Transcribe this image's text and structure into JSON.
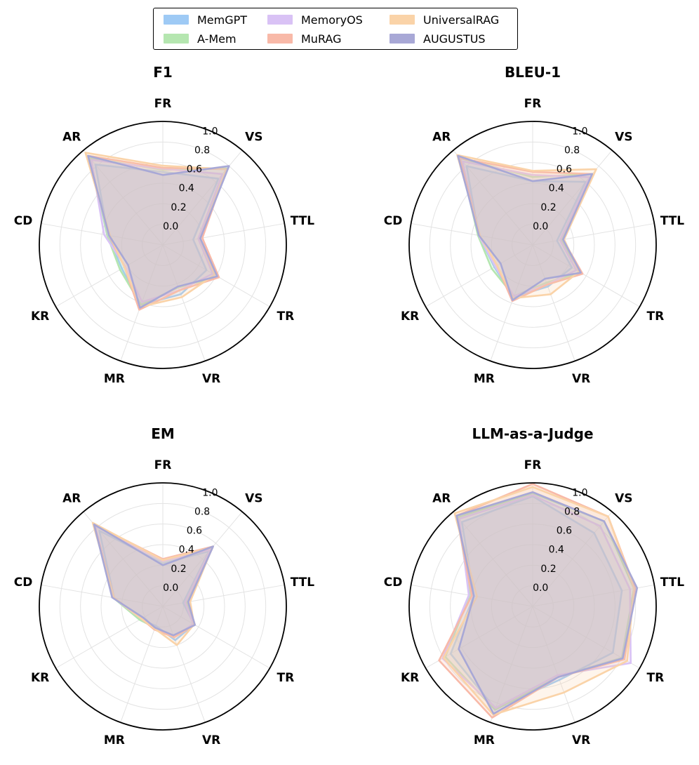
{
  "legend": [
    {
      "name": "MemGPT",
      "color": "#9ECAF5"
    },
    {
      "name": "A-Mem",
      "color": "#B5E6B0"
    },
    {
      "name": "MemoryOS",
      "color": "#D9C2F5"
    },
    {
      "name": "MuRAG",
      "color": "#F8B9A8"
    },
    {
      "name": "UniversalRAG",
      "color": "#FAD3A8"
    },
    {
      "name": "AUGUSTUS",
      "color": "#A8A8D6"
    }
  ],
  "chart_data": [
    {
      "type": "radar",
      "title": "F1",
      "axes": [
        "FR",
        "VS",
        "TTL",
        "TR",
        "VR",
        "MR",
        "KR",
        "CD",
        "AR"
      ],
      "rlim": [
        -0.2,
        1.0
      ],
      "rticks": [
        "0.0",
        "0.2",
        "0.4",
        "0.6",
        "0.8",
        "1.0"
      ],
      "series": [
        {
          "name": "MemGPT",
          "values": [
            0.51,
            0.64,
            0.1,
            0.29,
            0.31,
            0.42,
            0.26,
            0.34,
            0.82
          ]
        },
        {
          "name": "A-Mem",
          "values": [
            0.53,
            0.77,
            0.16,
            0.42,
            0.24,
            0.42,
            0.28,
            0.35,
            0.9
          ]
        },
        {
          "name": "MemoryOS",
          "values": [
            0.54,
            0.7,
            0.15,
            0.36,
            0.27,
            0.39,
            0.22,
            0.38,
            0.88
          ]
        },
        {
          "name": "MuRAG",
          "values": [
            0.55,
            0.76,
            0.19,
            0.43,
            0.27,
            0.47,
            0.23,
            0.33,
            0.93
          ]
        },
        {
          "name": "UniversalRAG",
          "values": [
            0.57,
            0.76,
            0.17,
            0.38,
            0.34,
            0.44,
            0.23,
            0.32,
            0.97
          ]
        },
        {
          "name": "AUGUSTUS",
          "values": [
            0.48,
            0.8,
            0.17,
            0.41,
            0.23,
            0.45,
            0.19,
            0.33,
            0.93
          ]
        }
      ]
    },
    {
      "type": "radar",
      "title": "BLEU-1",
      "axes": [
        "FR",
        "VS",
        "TTL",
        "TR",
        "VR",
        "MR",
        "KR",
        "CD",
        "AR"
      ],
      "rlim": [
        -0.2,
        1.0
      ],
      "rticks": [
        "0.0",
        "0.2",
        "0.4",
        "0.6",
        "0.8",
        "1.0"
      ],
      "series": [
        {
          "name": "MemGPT",
          "values": [
            0.42,
            0.6,
            0.04,
            0.24,
            0.23,
            0.34,
            0.23,
            0.33,
            0.8
          ]
        },
        {
          "name": "A-Mem",
          "values": [
            0.46,
            0.7,
            0.08,
            0.34,
            0.19,
            0.33,
            0.26,
            0.34,
            0.9
          ]
        },
        {
          "name": "MemoryOS",
          "values": [
            0.48,
            0.66,
            0.07,
            0.29,
            0.21,
            0.33,
            0.22,
            0.33,
            0.86
          ]
        },
        {
          "name": "MuRAG",
          "values": [
            0.51,
            0.7,
            0.1,
            0.36,
            0.21,
            0.38,
            0.2,
            0.32,
            0.9
          ]
        },
        {
          "name": "UniversalRAG",
          "values": [
            0.52,
            0.76,
            0.11,
            0.32,
            0.31,
            0.35,
            0.2,
            0.32,
            0.94
          ]
        },
        {
          "name": "AUGUSTUS",
          "values": [
            0.42,
            0.7,
            0.1,
            0.34,
            0.15,
            0.37,
            0.16,
            0.33,
            0.93
          ]
        }
      ]
    },
    {
      "type": "radar",
      "title": "EM",
      "axes": [
        "FR",
        "VS",
        "TTL",
        "TR",
        "VR",
        "MR",
        "KR",
        "CD",
        "AR"
      ],
      "rlim": [
        -0.2,
        1.0
      ],
      "rticks": [
        "0.0",
        "0.2",
        "0.4",
        "0.6",
        "0.8",
        "1.0"
      ],
      "series": [
        {
          "name": "MemGPT",
          "values": [
            0.22,
            0.5,
            0.0,
            0.15,
            0.15,
            0.0,
            0.05,
            0.28,
            0.76
          ]
        },
        {
          "name": "A-Mem",
          "values": [
            0.24,
            0.56,
            0.03,
            0.16,
            0.11,
            0.02,
            0.06,
            0.29,
            0.84
          ]
        },
        {
          "name": "MemoryOS",
          "values": [
            0.24,
            0.52,
            0.02,
            0.14,
            0.12,
            0.02,
            0.04,
            0.29,
            0.82
          ]
        },
        {
          "name": "MuRAG",
          "values": [
            0.26,
            0.56,
            0.05,
            0.16,
            0.12,
            0.04,
            0.04,
            0.28,
            0.84
          ]
        },
        {
          "name": "UniversalRAG",
          "values": [
            0.25,
            0.55,
            0.07,
            0.15,
            0.2,
            0.03,
            0.04,
            0.28,
            0.86
          ]
        },
        {
          "name": "AUGUSTUS",
          "values": [
            0.2,
            0.56,
            0.05,
            0.16,
            0.1,
            0.02,
            0.02,
            0.3,
            0.84
          ]
        }
      ]
    },
    {
      "type": "radar",
      "title": "LLM-as-a-Judge",
      "axes": [
        "FR",
        "VS",
        "TTL",
        "TR",
        "VR",
        "MR",
        "KR",
        "CD",
        "AR"
      ],
      "rlim": [
        -0.2,
        1.0
      ],
      "rticks": [
        "0.0",
        "0.2",
        "0.4",
        "0.6",
        "0.8",
        "1.0"
      ],
      "series": [
        {
          "name": "MemGPT",
          "values": [
            0.87,
            0.73,
            0.68,
            0.7,
            0.56,
            0.86,
            0.72,
            0.38,
            0.87
          ]
        },
        {
          "name": "A-Mem",
          "values": [
            0.9,
            0.88,
            0.8,
            0.8,
            0.53,
            0.87,
            0.78,
            0.42,
            0.93
          ]
        },
        {
          "name": "MemoryOS",
          "values": [
            0.88,
            0.82,
            0.76,
            0.9,
            0.51,
            0.85,
            0.81,
            0.43,
            0.91
          ]
        },
        {
          "name": "MuRAG",
          "values": [
            0.99,
            0.94,
            0.81,
            0.83,
            0.53,
            0.95,
            0.85,
            0.4,
            0.95
          ]
        },
        {
          "name": "UniversalRAG",
          "values": [
            0.96,
            0.94,
            0.8,
            0.86,
            0.69,
            0.92,
            0.8,
            0.35,
            0.98
          ]
        },
        {
          "name": "AUGUSTUS",
          "values": [
            0.91,
            0.88,
            0.83,
            0.81,
            0.53,
            0.91,
            0.63,
            0.38,
            0.95
          ]
        }
      ]
    }
  ]
}
